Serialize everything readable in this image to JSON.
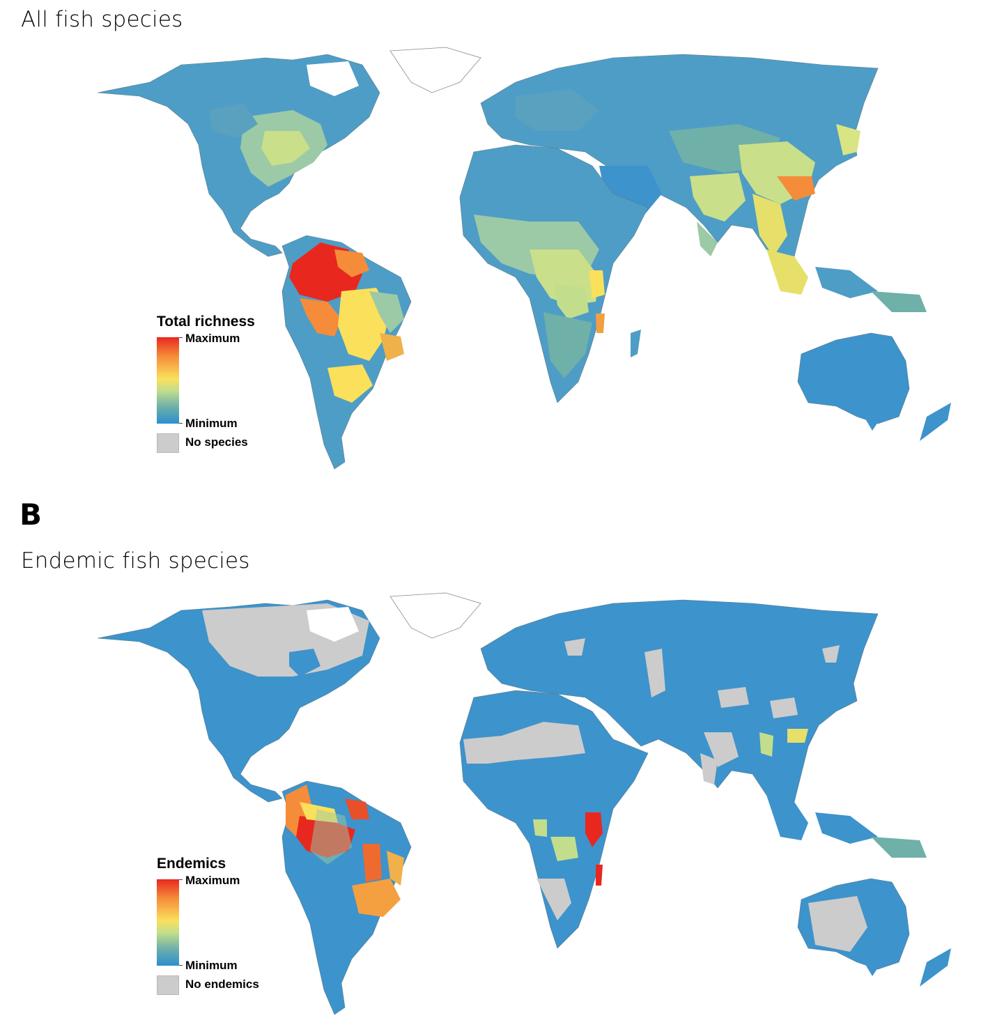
{
  "panels": [
    {
      "letter": "",
      "title": "All fish species",
      "legend": {
        "title": "Total richness",
        "max_label": "Maximum",
        "min_label": "Minimum",
        "nodata_label": "No species"
      }
    },
    {
      "letter": "B",
      "title": "Endemic fish species",
      "legend": {
        "title": "Endemics",
        "max_label": "Maximum",
        "min_label": "Minimum",
        "nodata_label": "No endemics"
      }
    }
  ],
  "colors": {
    "max": "#e8281e",
    "high": "#f58c3a",
    "mid": "#fbe05c",
    "low_mid": "#c2de8c",
    "low": "#6fb0a8",
    "min": "#2c8fcf",
    "no_data": "#cccccc"
  },
  "map": {
    "projection": "world",
    "region_unit": "river basins"
  }
}
